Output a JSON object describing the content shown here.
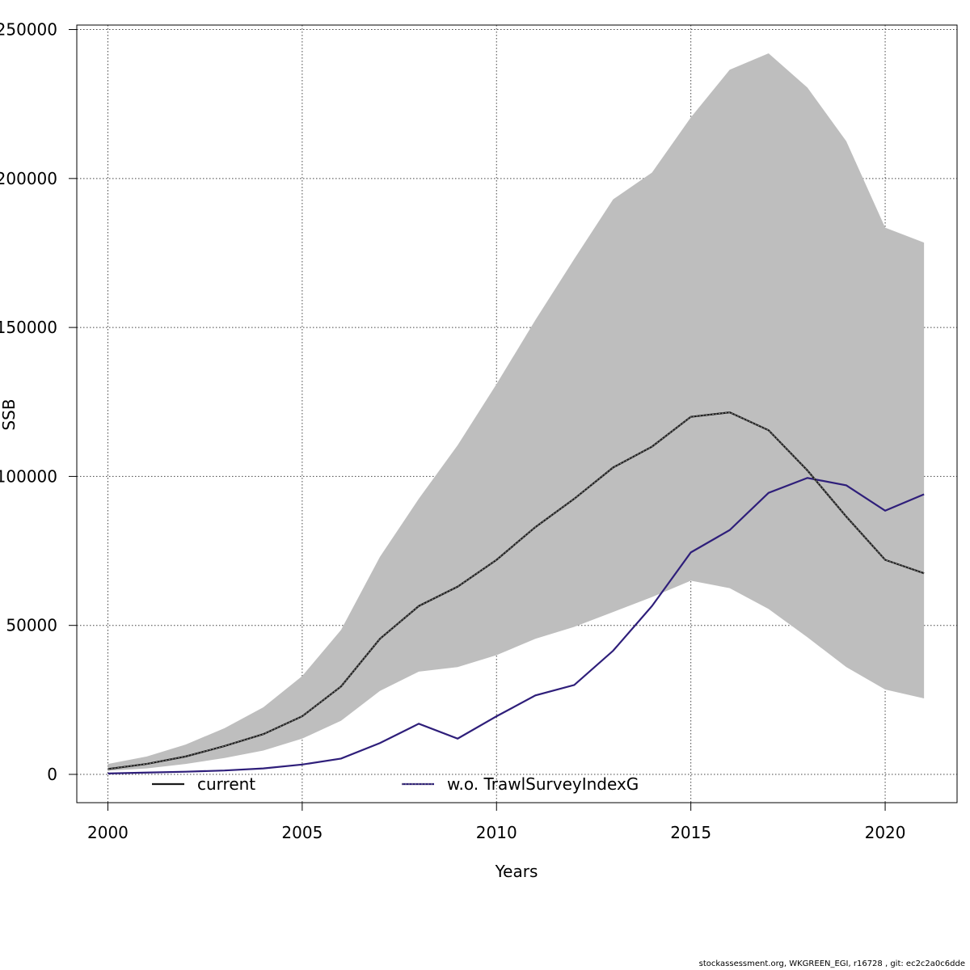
{
  "chart_data": {
    "type": "line",
    "title": "",
    "xlabel": "Years",
    "ylabel": "SSB",
    "xlim": [
      1999.2,
      2021.85
    ],
    "ylim": [
      -9500,
      251500
    ],
    "x_ticks": [
      2000,
      2005,
      2010,
      2015,
      2020
    ],
    "y_ticks": [
      0,
      50000,
      100000,
      150000,
      200000,
      250000
    ],
    "grid": true,
    "legend_position": "bottom",
    "x": [
      2000,
      2001,
      2002,
      2003,
      2004,
      2005,
      2006,
      2007,
      2008,
      2009,
      2010,
      2011,
      2012,
      2013,
      2014,
      2015,
      2016,
      2017,
      2018,
      2019,
      2020,
      2021
    ],
    "band": {
      "lower": [
        1200,
        2000,
        3500,
        5500,
        8000,
        12000,
        18000,
        28000,
        34500,
        36000,
        40000,
        45500,
        49500,
        54500,
        59500,
        65000,
        62500,
        55500,
        46000,
        36000,
        28500,
        25500
      ],
      "upper": [
        3500,
        6000,
        10000,
        15500,
        22500,
        33000,
        48500,
        73000,
        92500,
        110500,
        131000,
        152500,
        173000,
        193000,
        202000,
        220500,
        236500,
        242000,
        230500,
        212500,
        183500,
        178500
      ],
      "color": "#bebebe"
    },
    "series": [
      {
        "name": "current",
        "color": "#1a1a1a",
        "style": "solid",
        "values": [
          1800,
          3500,
          6000,
          9500,
          13500,
          19500,
          29500,
          45500,
          56500,
          63000,
          72000,
          83000,
          92500,
          103000,
          110000,
          120000,
          121500,
          115500,
          102000,
          86500,
          72000,
          67500
        ]
      },
      {
        "name": "w.o. TrawlSurveyIndexG",
        "color": "#2e1e7a",
        "style": "solid",
        "values": [
          300,
          600,
          900,
          1300,
          2000,
          3300,
          5300,
          10500,
          17000,
          12000,
          19500,
          26500,
          30000,
          41500,
          56500,
          74500,
          82000,
          94500,
          99500,
          97000,
          88500,
          94000
        ]
      }
    ],
    "legend": [
      {
        "label": "current"
      },
      {
        "label": "w.o. TrawlSurveyIndexG"
      }
    ]
  },
  "footer": {
    "credit": "stockassessment.org, WKGREEN_EGI, r16728 , git: ec2c2a0c6dde"
  }
}
